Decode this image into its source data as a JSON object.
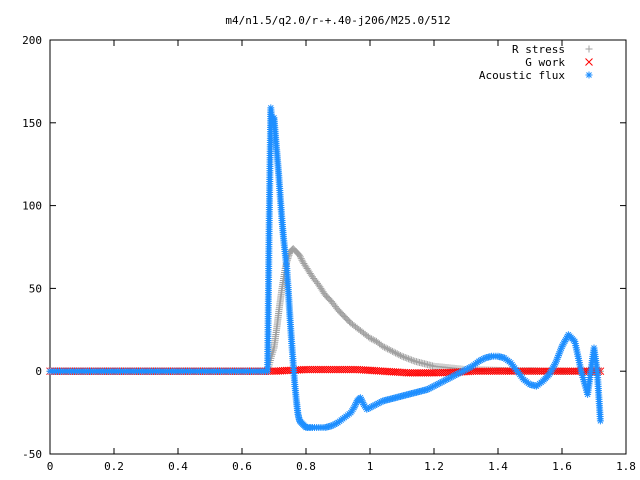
{
  "chart_data": {
    "type": "scatter",
    "title": "m4/n1.5/q2.0/r-+.40-j206/M25.0/512",
    "xlim": [
      0,
      1.8
    ],
    "ylim": [
      -50,
      200
    ],
    "xticks": [
      "0",
      "0.2",
      "0.4",
      "0.6",
      "0.8",
      "1",
      "1.2",
      "1.4",
      "1.6",
      "1.8"
    ],
    "yticks": [
      "-50",
      "0",
      "50",
      "100",
      "150",
      "200"
    ],
    "grid": false,
    "legend_position": "top-right",
    "series": [
      {
        "name": "R stress",
        "marker": "+",
        "color": "#a0a0a0",
        "x": [
          0.0,
          0.1,
          0.2,
          0.3,
          0.4,
          0.5,
          0.6,
          0.68,
          0.692,
          0.7,
          0.705,
          0.71,
          0.715,
          0.72,
          0.725,
          0.73,
          0.735,
          0.74,
          0.745,
          0.75,
          0.755,
          0.76,
          0.77,
          0.78,
          0.79,
          0.8,
          0.82,
          0.84,
          0.86,
          0.88,
          0.9,
          0.92,
          0.94,
          0.96,
          0.98,
          1.0,
          1.02,
          1.04,
          1.06,
          1.08,
          1.1,
          1.12,
          1.14,
          1.16,
          1.18,
          1.2,
          1.25,
          1.3,
          1.35,
          1.4,
          1.45,
          1.5,
          1.55,
          1.6,
          1.65,
          1.7,
          1.72
        ],
        "y": [
          0,
          0,
          0,
          0,
          0,
          0,
          0,
          0,
          9,
          14,
          21,
          28,
          36,
          43,
          50,
          56,
          62,
          66,
          69,
          72,
          73,
          74,
          72,
          70,
          66,
          63,
          57,
          52,
          46,
          42,
          37,
          33,
          29,
          26,
          23,
          20,
          18,
          15,
          13,
          11,
          9,
          7.5,
          6,
          5,
          4,
          3,
          2,
          1,
          0.8,
          0.5,
          0.3,
          0.2,
          0.1,
          0,
          0,
          0,
          0
        ]
      },
      {
        "name": "G work",
        "marker": "x",
        "color": "#ff0000",
        "x": [
          0.0,
          0.1,
          0.2,
          0.3,
          0.4,
          0.5,
          0.6,
          0.68,
          0.7,
          0.72,
          0.74,
          0.76,
          0.78,
          0.8,
          0.84,
          0.88,
          0.92,
          0.96,
          1.0,
          1.04,
          1.08,
          1.12,
          1.16,
          1.2,
          1.24,
          1.28,
          1.32,
          1.36,
          1.4,
          1.44,
          1.48,
          1.52,
          1.56,
          1.6,
          1.64,
          1.68,
          1.72
        ],
        "y": [
          0,
          0,
          0,
          0,
          0,
          0,
          0,
          0,
          0,
          0.2,
          0.4,
          0.6,
          0.8,
          1,
          1,
          1,
          1,
          1,
          0.5,
          0,
          -0.5,
          -1,
          -1,
          -1,
          -0.8,
          -0.5,
          0,
          0,
          0,
          0,
          0,
          0,
          0,
          0,
          0,
          0,
          0
        ]
      },
      {
        "name": "Acoustic flux",
        "marker": "*",
        "color": "#1f8fff",
        "x": [
          0.0,
          0.1,
          0.2,
          0.3,
          0.4,
          0.5,
          0.6,
          0.68,
          0.685,
          0.69,
          0.692,
          0.695,
          0.7,
          0.705,
          0.71,
          0.715,
          0.72,
          0.725,
          0.73,
          0.735,
          0.74,
          0.745,
          0.75,
          0.755,
          0.76,
          0.765,
          0.77,
          0.775,
          0.78,
          0.79,
          0.8,
          0.81,
          0.82,
          0.84,
          0.86,
          0.88,
          0.9,
          0.92,
          0.94,
          0.95,
          0.96,
          0.97,
          0.98,
          0.99,
          1.0,
          1.02,
          1.04,
          1.06,
          1.08,
          1.1,
          1.12,
          1.14,
          1.16,
          1.18,
          1.2,
          1.22,
          1.24,
          1.26,
          1.28,
          1.3,
          1.32,
          1.34,
          1.36,
          1.38,
          1.4,
          1.42,
          1.44,
          1.46,
          1.48,
          1.5,
          1.52,
          1.54,
          1.56,
          1.58,
          1.6,
          1.62,
          1.64,
          1.66,
          1.68,
          1.7,
          1.71,
          1.72
        ],
        "y": [
          0,
          0,
          0,
          0,
          0,
          0,
          0,
          0,
          91,
          159,
          154,
          152,
          153,
          141,
          130,
          118,
          104,
          91,
          80,
          71,
          62,
          48,
          32,
          18,
          5,
          -8,
          -18,
          -26,
          -30,
          -32,
          -34,
          -34,
          -34,
          -34,
          -34,
          -33,
          -31,
          -28,
          -25,
          -22,
          -18,
          -16,
          -20,
          -23,
          -22,
          -20,
          -18,
          -17,
          -16,
          -15,
          -14,
          -13,
          -12,
          -11,
          -9,
          -7,
          -5,
          -3,
          -1,
          1,
          3,
          6,
          8,
          9,
          9,
          8,
          5,
          0,
          -5,
          -8,
          -9,
          -6,
          -2,
          5,
          15,
          22,
          18,
          0,
          -14,
          14,
          0,
          -30
        ]
      }
    ]
  }
}
